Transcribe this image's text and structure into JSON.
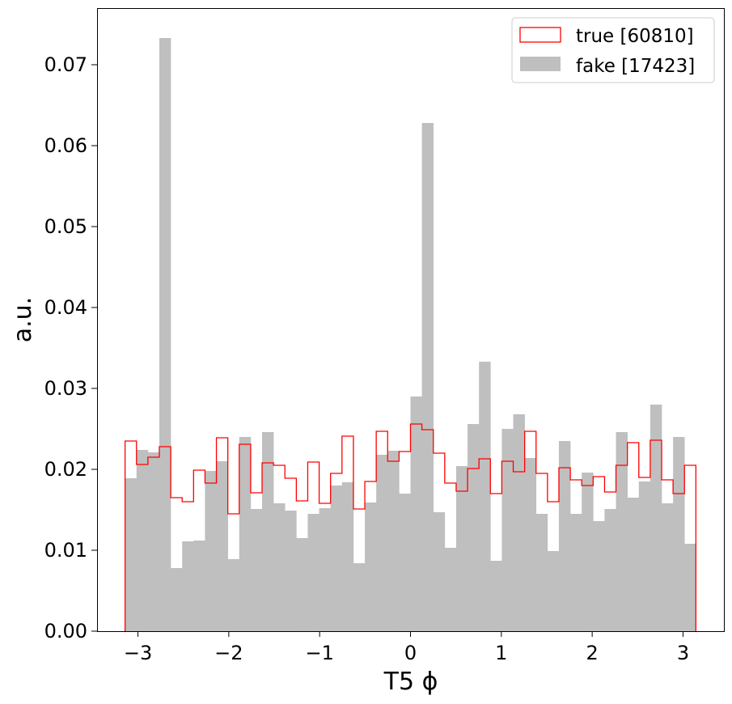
{
  "chart_data": {
    "type": "histogram",
    "xlabel": "T5 ϕ",
    "ylabel": "a.u.",
    "xlim": [
      -3.45,
      3.45
    ],
    "ylim": [
      0,
      0.077
    ],
    "x_ticks": [
      -3,
      -2,
      -1,
      0,
      1,
      2,
      3
    ],
    "y_ticks": [
      0.0,
      0.01,
      0.02,
      0.03,
      0.04,
      0.05,
      0.06,
      0.07
    ],
    "x_tick_labels": [
      "−3",
      "−2",
      "−1",
      "0",
      "1",
      "2",
      "3"
    ],
    "y_tick_labels": [
      "0.00",
      "0.01",
      "0.02",
      "0.03",
      "0.04",
      "0.05",
      "0.06",
      "0.07"
    ],
    "bin_range": [
      -3.1416,
      3.1416
    ],
    "n_bins": 50,
    "legend_position": "top-right",
    "series": [
      {
        "name": "true [60810]",
        "style": "step",
        "color": "#ff0000",
        "values": [
          0.0235,
          0.0206,
          0.0215,
          0.0228,
          0.0165,
          0.016,
          0.0199,
          0.0183,
          0.0239,
          0.0145,
          0.0231,
          0.0171,
          0.0208,
          0.0205,
          0.0189,
          0.0161,
          0.0209,
          0.0158,
          0.0195,
          0.0241,
          0.0151,
          0.0185,
          0.0247,
          0.021,
          0.0222,
          0.0256,
          0.0249,
          0.022,
          0.0183,
          0.0173,
          0.0201,
          0.0213,
          0.017,
          0.021,
          0.0197,
          0.0247,
          0.0195,
          0.016,
          0.0202,
          0.0187,
          0.018,
          0.0191,
          0.0172,
          0.0205,
          0.0233,
          0.019,
          0.0236,
          0.0187,
          0.017,
          0.0205
        ]
      },
      {
        "name": "fake [17423]",
        "style": "filled",
        "color": "#bfbfbf",
        "values": [
          0.0189,
          0.0224,
          0.0221,
          0.0733,
          0.0078,
          0.0111,
          0.0112,
          0.0198,
          0.021,
          0.0089,
          0.024,
          0.0151,
          0.0246,
          0.0158,
          0.0149,
          0.0115,
          0.0145,
          0.0152,
          0.018,
          0.0184,
          0.0084,
          0.0159,
          0.0218,
          0.0223,
          0.017,
          0.029,
          0.0628,
          0.0147,
          0.0103,
          0.0204,
          0.0256,
          0.0333,
          0.0087,
          0.025,
          0.0268,
          0.0214,
          0.0145,
          0.0099,
          0.0235,
          0.0145,
          0.0196,
          0.0136,
          0.0151,
          0.0246,
          0.0165,
          0.0185,
          0.028,
          0.0158,
          0.024,
          0.0108
        ]
      }
    ]
  }
}
